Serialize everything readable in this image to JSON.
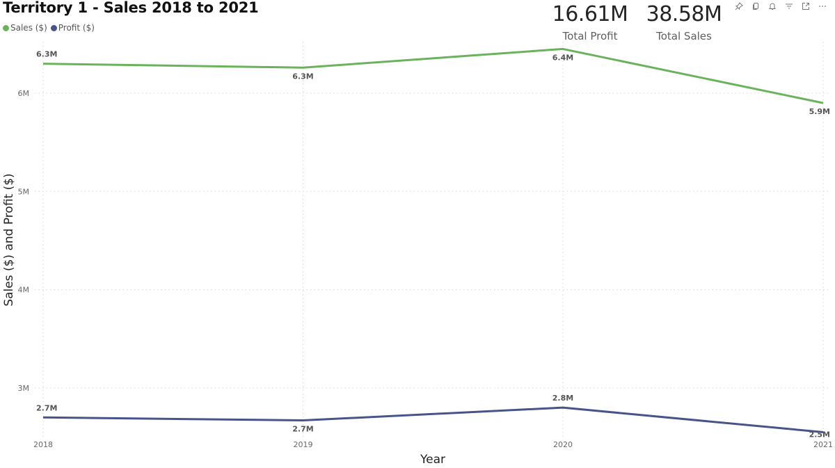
{
  "header": {
    "title": "Territory 1 - Sales 2018 to 2021"
  },
  "legend": [
    {
      "label": "Sales ($)",
      "color": "#6ab35c"
    },
    {
      "label": "Profit ($)",
      "color": "#46548a"
    }
  ],
  "kpis": [
    {
      "value": "16.61M",
      "label": "Total Profit"
    },
    {
      "value": "38.58M",
      "label": "Total Sales"
    }
  ],
  "toolbar": {
    "icons": [
      "pin-icon",
      "copy-icon",
      "bell-icon",
      "filter-icon",
      "focus-mode-icon",
      "more-options-icon"
    ]
  },
  "chart_data": {
    "type": "line",
    "title": "Territory 1 - Sales 2018 to 2021",
    "xlabel": "Year",
    "ylabel": "Sales ($) and Profit ($)",
    "categories": [
      "2018",
      "2019",
      "2020",
      "2021"
    ],
    "series": [
      {
        "name": "Sales ($)",
        "color": "#6ab35c",
        "values": [
          6.3,
          6.26,
          6.45,
          5.9
        ],
        "labels": [
          "6.3M",
          "6.3M",
          "6.4M",
          "5.9M"
        ]
      },
      {
        "name": "Profit ($)",
        "color": "#46548a",
        "values": [
          2.7,
          2.67,
          2.8,
          2.55
        ],
        "labels": [
          "2.7M",
          "2.7M",
          "2.8M",
          "2.5M"
        ]
      }
    ],
    "y_ticks": [
      "3M",
      "4M",
      "5M",
      "6M"
    ],
    "y_tick_values": [
      3,
      4,
      5,
      6
    ],
    "ylim": [
      2.45,
      6.6
    ],
    "units": "millions",
    "grid": true,
    "gridline_style": "dotted",
    "legend_position": "top-left"
  }
}
